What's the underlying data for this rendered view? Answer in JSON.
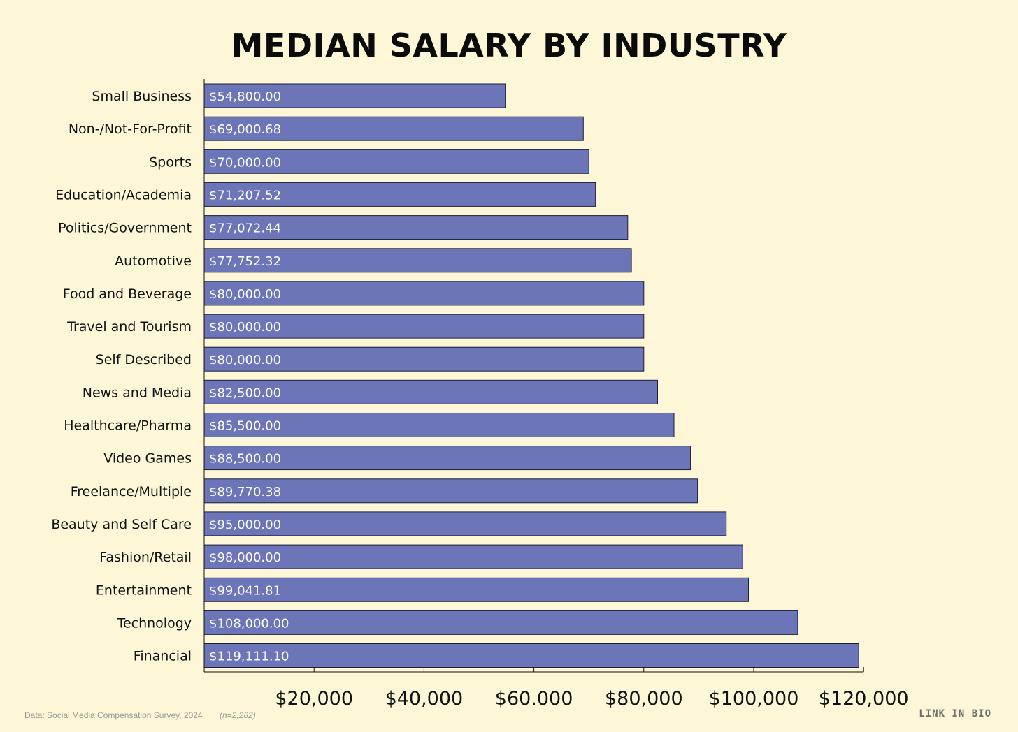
{
  "chart_data": {
    "type": "bar",
    "orientation": "horizontal",
    "title": "MEDIAN SALARY BY INDUSTRY",
    "categories": [
      "Small Business",
      "Non-/Not-For-Profit",
      "Sports",
      "Education/Academia",
      "Politics/Government",
      "Automotive",
      "Food and Beverage",
      "Travel and Tourism",
      "Self Described",
      "News and Media",
      "Healthcare/Pharma",
      "Video Games",
      "Freelance/Multiple",
      "Beauty and Self Care",
      "Fashion/Retail",
      "Entertainment",
      "Technology",
      "Financial"
    ],
    "values": [
      54800.0,
      69000.68,
      70000.0,
      71207.52,
      77072.44,
      77752.32,
      80000.0,
      80000.0,
      80000.0,
      82500.0,
      85500.0,
      88500.0,
      89770.38,
      95000.0,
      98000.0,
      99041.81,
      108000.0,
      119111.1
    ],
    "value_labels": [
      "$54,800.00",
      "$69,000.68",
      "$70,000.00",
      "$71,207.52",
      "$77,072.44",
      "$77,752.32",
      "$80,000.00",
      "$80,000.00",
      "$80,000.00",
      "$82,500.00",
      "$85,500.00",
      "$88,500.00",
      "$89,770.38",
      "$95,000.00",
      "$98,000.00",
      "$99,041.81",
      "$108,000.00",
      "$119,111.10"
    ],
    "x_ticks": [
      20000,
      40000,
      60000,
      80000,
      100000,
      120000
    ],
    "x_tick_labels": [
      "$20,000",
      "$40,000",
      "$60.000",
      "$80,000",
      "$100,000",
      "$120,000"
    ],
    "xlim": [
      0,
      120000
    ],
    "grid": false,
    "bar_color": "#6b75b8"
  },
  "footer": {
    "source": "Data: Social Media Compensation Survey, 2024",
    "sample": "(n=2,282)",
    "brand": "LINK IN BIO"
  }
}
